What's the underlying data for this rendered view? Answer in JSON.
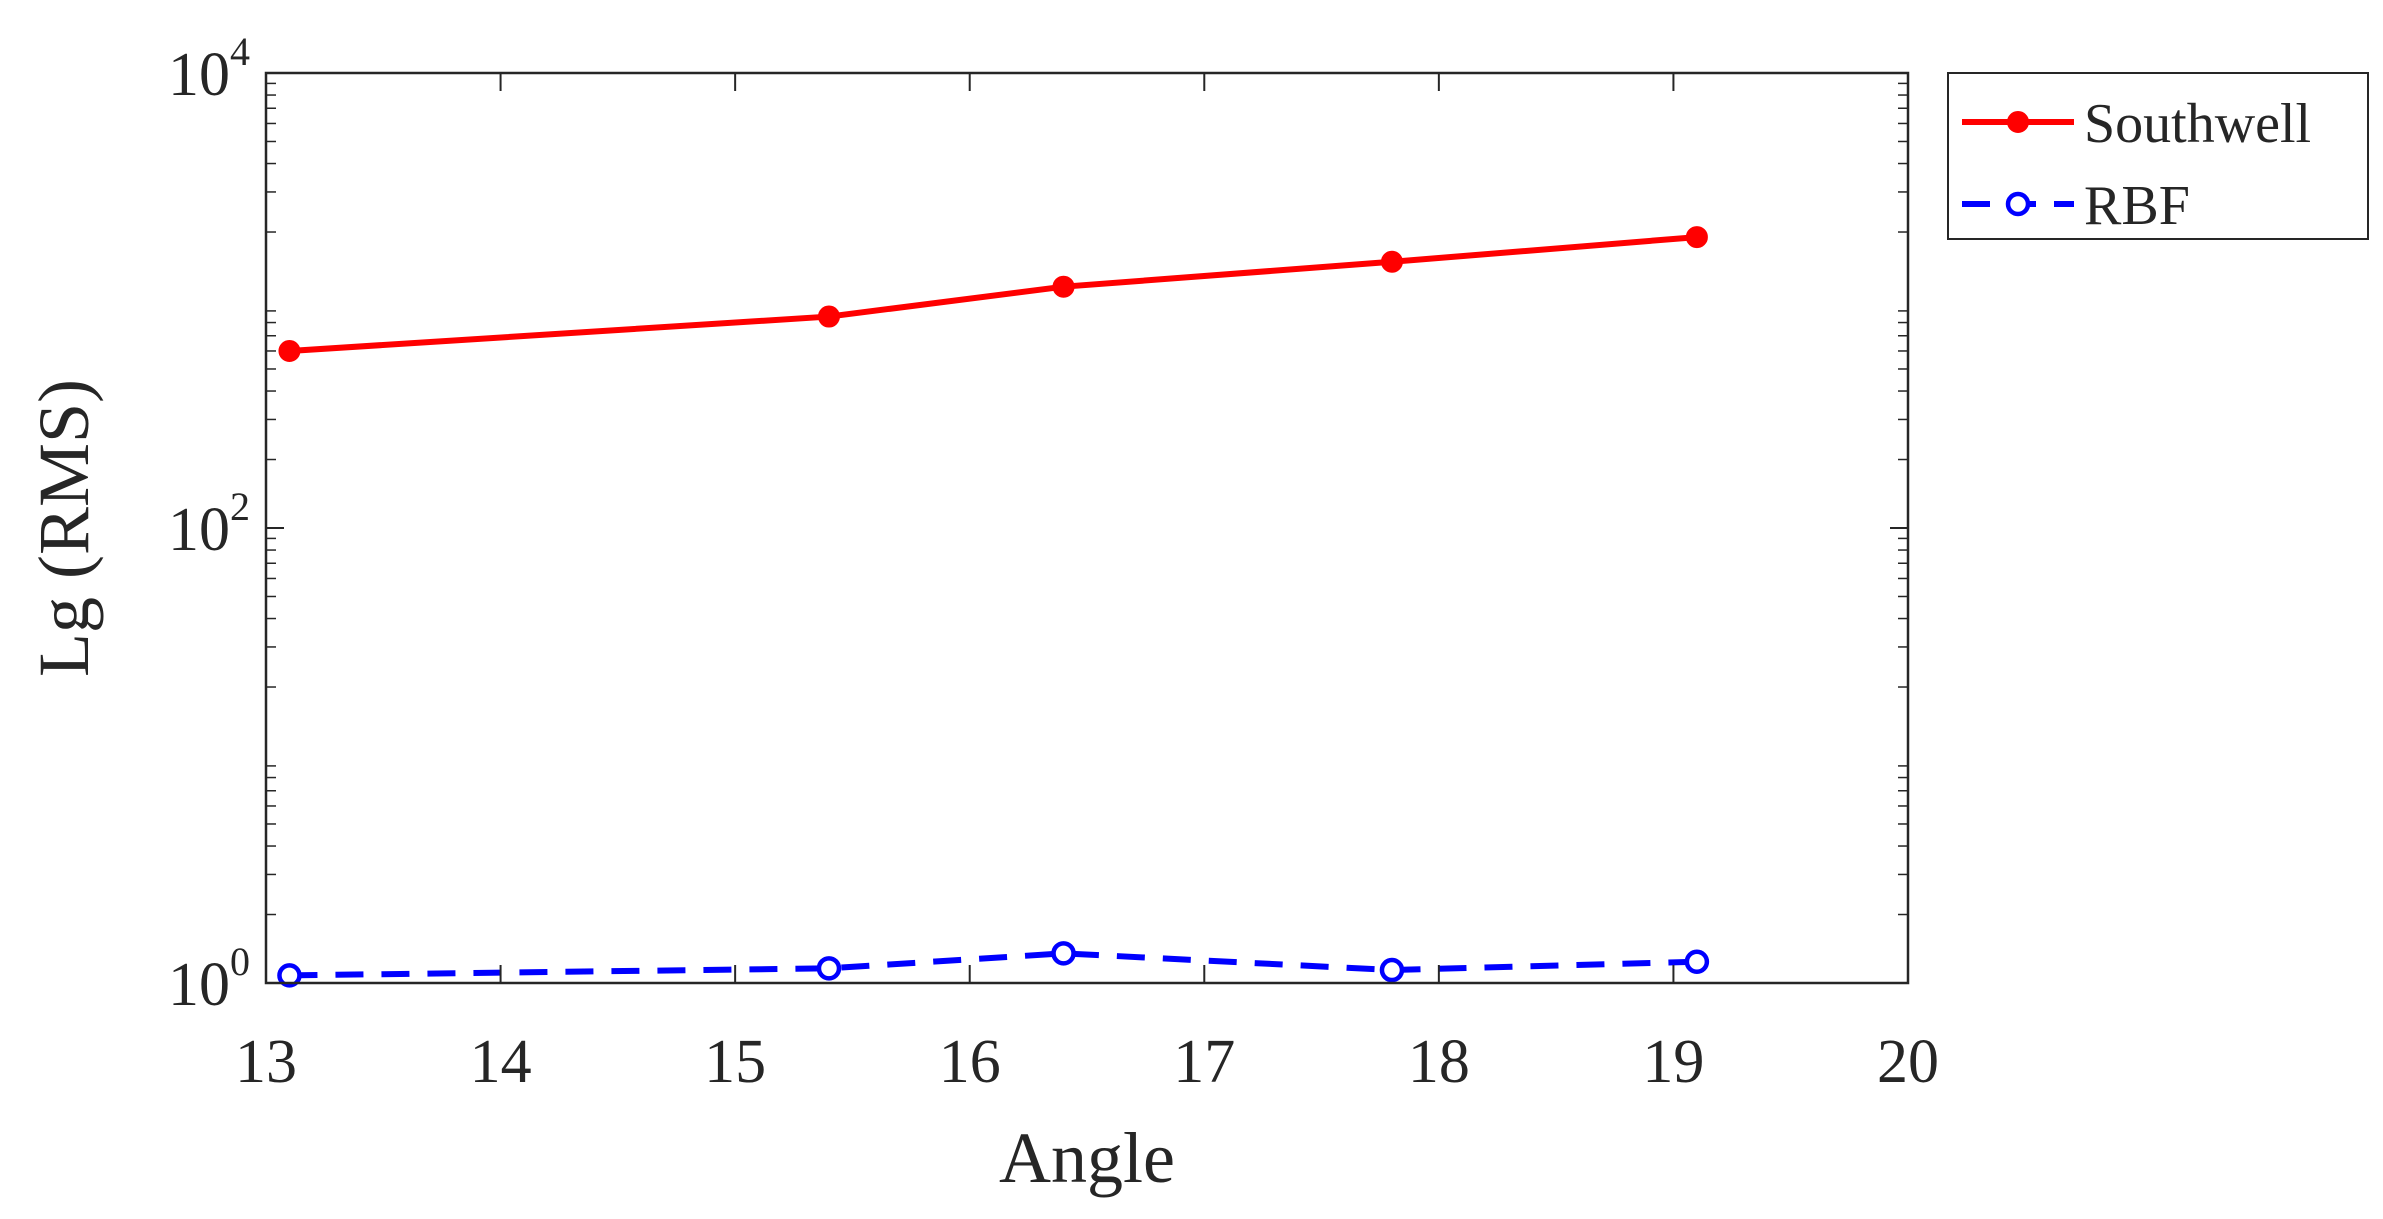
{
  "chart_data": {
    "type": "line",
    "title": "",
    "xlabel": "Angle",
    "ylabel": "Lg (RMS)",
    "xlim": [
      13,
      20
    ],
    "ylim": [
      1,
      10000
    ],
    "yscale": "log",
    "grid": false,
    "legend_position": "outside-top-right",
    "x_ticks": [
      {
        "value": 13,
        "label": "13"
      },
      {
        "value": 14,
        "label": "14"
      },
      {
        "value": 15,
        "label": "15"
      },
      {
        "value": 16,
        "label": "16"
      },
      {
        "value": 17,
        "label": "17"
      },
      {
        "value": 18,
        "label": "18"
      },
      {
        "value": 19,
        "label": "19"
      },
      {
        "value": 20,
        "label": "20"
      }
    ],
    "y_ticks": [
      {
        "value": 1,
        "base": "10",
        "exp": "0"
      },
      {
        "value": 100,
        "base": "10",
        "exp": "2"
      },
      {
        "value": 10000,
        "base": "10",
        "exp": "4"
      }
    ],
    "series": [
      {
        "name": "Southwell",
        "color": "#ff0000",
        "line_style": "solid",
        "marker": "filled-circle",
        "x": [
          13.1,
          15.4,
          16.4,
          17.8,
          19.1
        ],
        "y": [
          600,
          850,
          1150,
          1480,
          1900
        ]
      },
      {
        "name": "RBF",
        "color": "#0000ff",
        "line_style": "dashed",
        "marker": "open-circle",
        "x": [
          13.1,
          15.4,
          16.4,
          17.8,
          19.1
        ],
        "y": [
          1.08,
          1.16,
          1.35,
          1.14,
          1.24
        ]
      }
    ]
  }
}
